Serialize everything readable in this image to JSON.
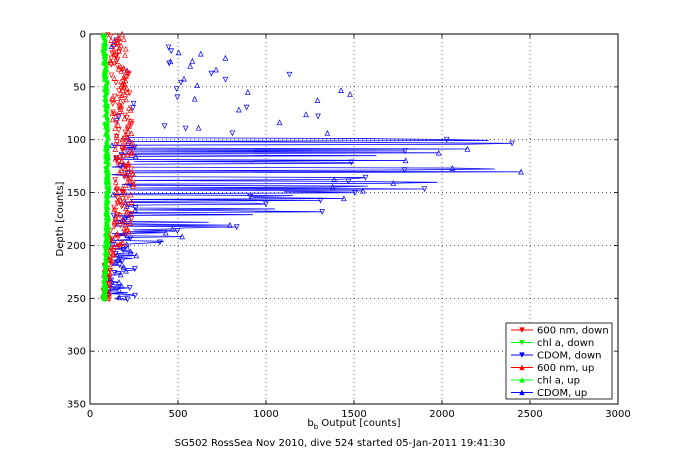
{
  "chart_data": {
    "type": "scatter",
    "title": "",
    "caption": "SG502 RossSea Nov 2010, dive 524 started 05-Jan-2011 19:41:30",
    "xlabel": {
      "base": "b",
      "sub": "b",
      "rest": " Output [counts]"
    },
    "ylabel": "Depth [counts]",
    "xlim": [
      0,
      3000
    ],
    "ylim": [
      0,
      350
    ],
    "y_reversed": true,
    "grid": true,
    "legend_position": "bottom-right",
    "xticks": [
      "0",
      "500",
      "1000",
      "1500",
      "2000",
      "2500",
      "3000"
    ],
    "yticks": [
      "0",
      "50",
      "100",
      "150",
      "200",
      "250",
      "300",
      "350"
    ],
    "series": [
      {
        "name": "600 nm, down",
        "color": "#ff0000",
        "marker": "triangle-down"
      },
      {
        "name": "chl a, down",
        "color": "#00ff00",
        "marker": "triangle-down"
      },
      {
        "name": "CDOM, down",
        "color": "#0000ff",
        "marker": "triangle-down"
      },
      {
        "name": "600 nm, up",
        "color": "#ff0000",
        "marker": "triangle-up"
      },
      {
        "name": "chl a, up",
        "color": "#00ff00",
        "marker": "triangle-up"
      },
      {
        "name": "CDOM, up",
        "color": "#0000ff",
        "marker": "triangle-up"
      }
    ],
    "profile_estimates": {
      "chl_a": [
        [
          0,
          80
        ],
        [
          50,
          90
        ],
        [
          100,
          95
        ],
        [
          150,
          100
        ],
        [
          200,
          95
        ],
        [
          230,
          85
        ],
        [
          250,
          80
        ]
      ],
      "red_600nm": [
        [
          0,
          150
        ],
        [
          50,
          170
        ],
        [
          100,
          190
        ],
        [
          150,
          200
        ],
        [
          180,
          180
        ],
        [
          200,
          150
        ],
        [
          210,
          110
        ],
        [
          230,
          95
        ],
        [
          250,
          90
        ]
      ],
      "cdom_scatter": [
        [
          10,
          450
        ],
        [
          20,
          800
        ],
        [
          30,
          1150
        ],
        [
          40,
          1250
        ],
        [
          50,
          1650
        ],
        [
          60,
          1500
        ],
        [
          70,
          1300
        ],
        [
          80,
          1500
        ],
        [
          90,
          1050
        ],
        [
          100,
          2400
        ],
        [
          110,
          2300
        ],
        [
          120,
          2100
        ],
        [
          130,
          2600
        ],
        [
          140,
          2200
        ],
        [
          150,
          1700
        ],
        [
          160,
          1200
        ],
        [
          170,
          1350
        ],
        [
          180,
          900
        ],
        [
          190,
          600
        ],
        [
          200,
          400
        ],
        [
          210,
          250
        ],
        [
          220,
          180
        ],
        [
          230,
          130
        ],
        [
          240,
          110
        ],
        [
          250,
          100
        ]
      ]
    }
  }
}
